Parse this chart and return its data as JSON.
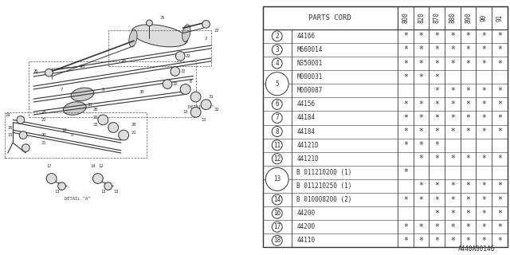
{
  "bg_color": "#ffffff",
  "diagram_label": "A440A00146",
  "rows": [
    {
      "num": "2",
      "part": "44166",
      "stars": [
        1,
        1,
        1,
        1,
        1,
        1,
        1
      ],
      "double": false,
      "sub": false
    },
    {
      "num": "3",
      "part": "M660014",
      "stars": [
        1,
        1,
        1,
        1,
        1,
        1,
        1
      ],
      "double": false,
      "sub": false
    },
    {
      "num": "4",
      "part": "N350001",
      "stars": [
        1,
        1,
        1,
        1,
        1,
        1,
        1
      ],
      "double": false,
      "sub": false
    },
    {
      "num": "5",
      "part": "M000031",
      "stars": [
        1,
        1,
        1,
        0,
        0,
        0,
        0
      ],
      "double": true,
      "sub": false
    },
    {
      "num": "",
      "part": "M000087",
      "stars": [
        0,
        0,
        1,
        1,
        1,
        1,
        1
      ],
      "double": false,
      "sub": true
    },
    {
      "num": "6",
      "part": "44156",
      "stars": [
        1,
        1,
        1,
        1,
        1,
        1,
        1
      ],
      "double": false,
      "sub": false
    },
    {
      "num": "7",
      "part": "44184",
      "stars": [
        1,
        1,
        1,
        1,
        1,
        1,
        1
      ],
      "double": false,
      "sub": false
    },
    {
      "num": "8",
      "part": "44184",
      "stars": [
        1,
        1,
        1,
        1,
        1,
        1,
        1
      ],
      "double": false,
      "sub": false
    },
    {
      "num": "11",
      "part": "44121D",
      "stars": [
        1,
        1,
        1,
        0,
        0,
        0,
        0
      ],
      "double": false,
      "sub": false
    },
    {
      "num": "12",
      "part": "44121D",
      "stars": [
        0,
        1,
        1,
        1,
        1,
        1,
        1
      ],
      "double": false,
      "sub": false
    },
    {
      "num": "13",
      "part": "B 011210200 (1)",
      "stars": [
        1,
        0,
        0,
        0,
        0,
        0,
        0
      ],
      "double": true,
      "sub": false
    },
    {
      "num": "",
      "part": "B 011210250 (1)",
      "stars": [
        0,
        1,
        1,
        1,
        1,
        1,
        1
      ],
      "double": false,
      "sub": true
    },
    {
      "num": "14",
      "part": "B 010008200 (2)",
      "stars": [
        1,
        1,
        1,
        1,
        1,
        1,
        1
      ],
      "double": false,
      "sub": false
    },
    {
      "num": "16",
      "part": "44200",
      "stars": [
        0,
        0,
        1,
        1,
        1,
        1,
        1
      ],
      "double": false,
      "sub": false
    },
    {
      "num": "17",
      "part": "44200",
      "stars": [
        1,
        1,
        1,
        1,
        1,
        1,
        1
      ],
      "double": false,
      "sub": false
    },
    {
      "num": "18",
      "part": "44110",
      "stars": [
        1,
        1,
        1,
        1,
        1,
        1,
        1
      ],
      "double": false,
      "sub": false
    }
  ],
  "year_cols": [
    "800",
    "820",
    "870",
    "880",
    "890",
    "90",
    "91"
  ],
  "split": 0.505
}
